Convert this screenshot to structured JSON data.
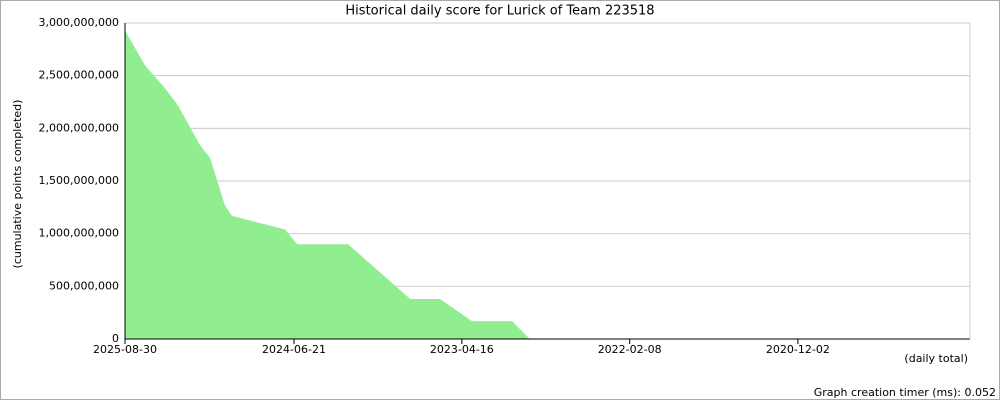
{
  "chart_data": {
    "type": "area",
    "title": "Historical daily score for Lurick of Team 223518",
    "y_label": "(cumulative points completed)",
    "x_label": "(daily total)",
    "footer": "Graph creation timer (ms): 0.052",
    "series": [
      {
        "color": "#90ee90",
        "x": [
          "2025-08-30",
          "2025-07-10",
          "2025-05-19",
          "2025-04-16",
          "2025-02-18",
          "2025-01-23",
          "2024-12-16",
          "2024-11-28",
          "2024-07-14",
          "2024-06-13",
          "2024-02-03",
          "2023-08-27",
          "2023-06-11",
          "2023-03-21",
          "2022-12-08",
          "2022-10-23"
        ],
        "values": [
          2930000000,
          2600000000,
          2380000000,
          2220000000,
          1840000000,
          1720000000,
          1270000000,
          1170000000,
          1040000000,
          900000000,
          900000000,
          380000000,
          380000000,
          170000000,
          170000000,
          0
        ]
      }
    ],
    "xlim": [
      "2025-08-30",
      "2019-09-16"
    ],
    "xticks": [
      "2025-08-30",
      "2024-06-21",
      "2023-04-16",
      "2022-02-08",
      "2020-12-02"
    ],
    "ylim": [
      0,
      3000000000
    ],
    "yticks": [
      0,
      {
        "value": 500000000,
        "label": "500,000,000"
      },
      {
        "value": 1000000000,
        "label": "1,000,000,000"
      },
      {
        "value": 1500000000,
        "label": "1,500,000,000"
      },
      {
        "value": 2000000000,
        "label": "2,000,000,000"
      },
      {
        "value": 2500000000,
        "label": "2,500,000,000"
      },
      {
        "value": 3000000000,
        "label": "3,000,000,000"
      }
    ],
    "grid": true
  }
}
